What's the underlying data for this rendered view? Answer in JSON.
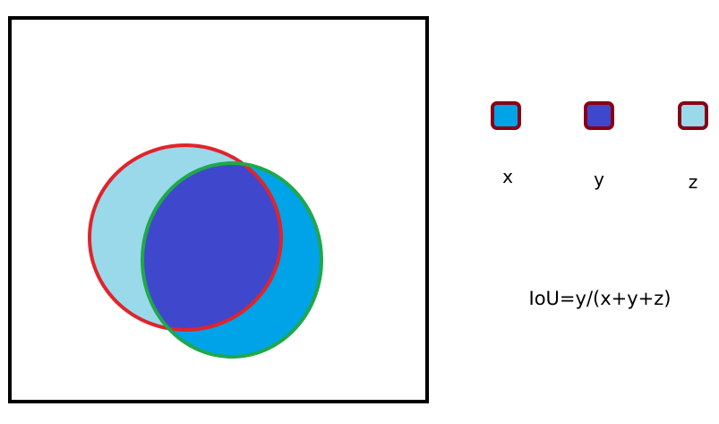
{
  "colors": {
    "frame": "#000000",
    "background": "#ffffff",
    "outline_red": "#e0242c",
    "outline_green": "#1fa84a",
    "region_x": "#00a2e8",
    "region_y": "#3f48cc",
    "region_z": "#99d9ea",
    "swatch_border": "#880015"
  },
  "legend": [
    {
      "key": "x",
      "label": "x",
      "color": "#00a2e8"
    },
    {
      "key": "y",
      "label": "y",
      "color": "#3f48cc"
    },
    {
      "key": "z",
      "label": "z",
      "color": "#99d9ea"
    }
  ],
  "formula": "IoU=y/(x+y+z)"
}
